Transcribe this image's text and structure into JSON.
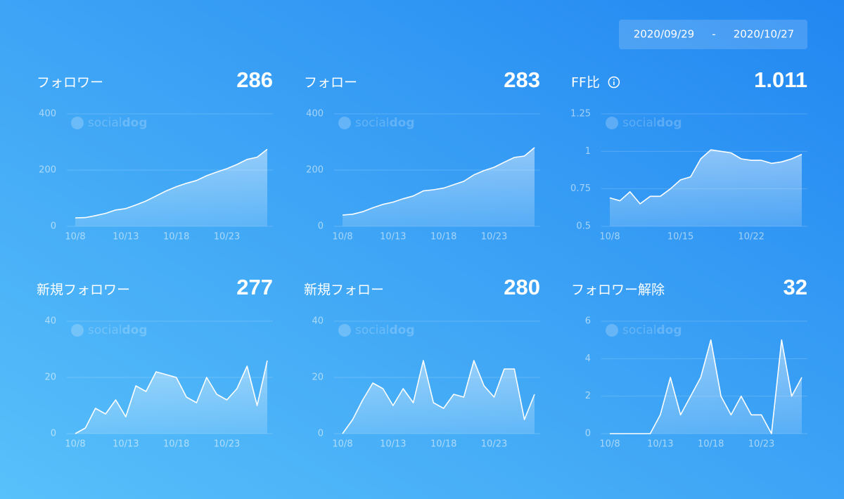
{
  "date_range": {
    "start": "2020/09/29",
    "separator": "-",
    "end": "2020/10/27"
  },
  "watermark": {
    "light": "social",
    "bold": "dog"
  },
  "chart_data": [
    {
      "type": "area",
      "title": "フォロワー",
      "total": 286,
      "color": "#ffffff",
      "categories": [
        "10/8",
        null,
        null,
        null,
        null,
        "10/13",
        null,
        null,
        null,
        null,
        "10/18",
        null,
        null,
        null,
        null,
        "10/23",
        null,
        null,
        null,
        null
      ],
      "values": [
        30,
        31,
        38,
        46,
        58,
        63,
        76,
        90,
        108,
        126,
        141,
        153,
        163,
        180,
        193,
        205,
        220,
        238,
        246,
        274
      ],
      "ylim": [
        0,
        400
      ],
      "yticks": [
        0,
        200,
        400
      ],
      "grid": true
    },
    {
      "type": "area",
      "title": "フォロー",
      "total": 283,
      "color": "#ffffff",
      "categories": [
        "10/8",
        null,
        null,
        null,
        null,
        "10/13",
        null,
        null,
        null,
        null,
        "10/18",
        null,
        null,
        null,
        null,
        "10/23",
        null,
        null,
        null,
        null
      ],
      "values": [
        40,
        43,
        52,
        66,
        78,
        86,
        98,
        108,
        126,
        130,
        136,
        148,
        160,
        183,
        198,
        210,
        228,
        245,
        250,
        280
      ],
      "ylim": [
        0,
        400
      ],
      "yticks": [
        0,
        200,
        400
      ],
      "grid": true
    },
    {
      "type": "area",
      "title": "FF比",
      "info_icon": true,
      "total": 1.011,
      "color": "#ffffff",
      "categories": [
        "10/8",
        null,
        null,
        null,
        null,
        null,
        null,
        "10/15",
        null,
        null,
        null,
        null,
        null,
        null,
        "10/22",
        null,
        null,
        null,
        null,
        null
      ],
      "values": [
        0.69,
        0.67,
        0.73,
        0.65,
        0.7,
        0.7,
        0.75,
        0.81,
        0.83,
        0.95,
        1.01,
        1.0,
        0.99,
        0.95,
        0.94,
        0.94,
        0.92,
        0.93,
        0.95,
        0.98
      ],
      "ylim": [
        0.5,
        1.25
      ],
      "yticks": [
        0.5,
        0.75,
        1,
        1.25
      ],
      "grid": true
    },
    {
      "type": "area",
      "title": "新規フォロワー",
      "total": 277,
      "color": "#ffffff",
      "categories": [
        "10/8",
        null,
        null,
        null,
        null,
        "10/13",
        null,
        null,
        null,
        null,
        "10/18",
        null,
        null,
        null,
        null,
        "10/23",
        null,
        null,
        null,
        null
      ],
      "values": [
        0,
        2,
        9,
        7,
        12,
        6,
        17,
        15,
        22,
        21,
        20,
        13,
        11,
        20,
        14,
        12,
        16,
        24,
        10,
        26
      ],
      "ylim": [
        0,
        40
      ],
      "yticks": [
        0,
        20,
        40
      ],
      "grid": true
    },
    {
      "type": "area",
      "title": "新規フォロー",
      "total": 280,
      "color": "#ffffff",
      "categories": [
        "10/8",
        null,
        null,
        null,
        null,
        "10/13",
        null,
        null,
        null,
        null,
        "10/18",
        null,
        null,
        null,
        null,
        "10/23",
        null,
        null,
        null,
        null
      ],
      "values": [
        0,
        5,
        12,
        18,
        16,
        10,
        16,
        11,
        26,
        11,
        9,
        14,
        13,
        26,
        17,
        13,
        23,
        23,
        5,
        14
      ],
      "ylim": [
        0,
        40
      ],
      "yticks": [
        0,
        20,
        40
      ],
      "grid": true
    },
    {
      "type": "area",
      "title": "フォロワー解除",
      "total": 32,
      "color": "#ffffff",
      "categories": [
        "10/8",
        null,
        null,
        null,
        null,
        "10/13",
        null,
        null,
        null,
        null,
        "10/18",
        null,
        null,
        null,
        null,
        "10/23",
        null,
        null,
        null,
        null
      ],
      "values": [
        0,
        0,
        0,
        0,
        0,
        1,
        3,
        1,
        2,
        3,
        5,
        2,
        1,
        2,
        1,
        1,
        0,
        5,
        2,
        3
      ],
      "ylim": [
        0,
        6
      ],
      "yticks": [
        0,
        2,
        4,
        6
      ],
      "grid": true
    }
  ]
}
